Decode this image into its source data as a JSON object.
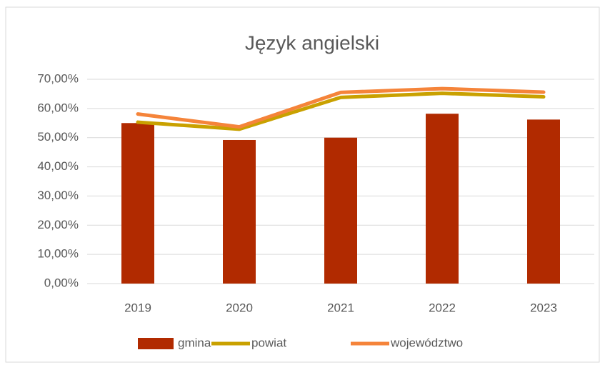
{
  "chart_data": {
    "type": "bar",
    "title": "Język angielski",
    "categories": [
      "2019",
      "2020",
      "2021",
      "2022",
      "2023"
    ],
    "series": [
      {
        "name": "gmina",
        "type": "bar",
        "color": "#b12a00",
        "values": [
          55.0,
          49.2,
          50.0,
          58.2,
          56.2
        ]
      },
      {
        "name": "powiat",
        "type": "line",
        "color": "#c9a100",
        "values": [
          55.3,
          52.9,
          63.8,
          65.2,
          64.0
        ]
      },
      {
        "name": "województwo",
        "type": "line",
        "color": "#f5843a",
        "values": [
          58.1,
          53.7,
          65.5,
          66.8,
          65.6
        ]
      }
    ],
    "ylim": [
      0,
      70
    ],
    "yticks": [
      {
        "value": 0,
        "label": "0,00%"
      },
      {
        "value": 10,
        "label": "10,00%"
      },
      {
        "value": 20,
        "label": "20,00%"
      },
      {
        "value": 30,
        "label": "30,00%"
      },
      {
        "value": 40,
        "label": "40,00%"
      },
      {
        "value": 50,
        "label": "50,00%"
      },
      {
        "value": 60,
        "label": "60,00%"
      },
      {
        "value": 70,
        "label": "70,00%"
      }
    ],
    "grid": true,
    "legend": "bottom"
  }
}
